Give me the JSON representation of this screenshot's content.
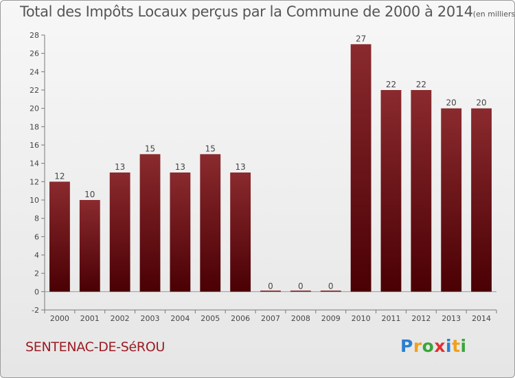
{
  "brand": {
    "letters": [
      {
        "char": "P",
        "color": "#2a7fd0"
      },
      {
        "char": "r",
        "color": "#f0a020"
      },
      {
        "char": "o",
        "color": "#3aa63a"
      },
      {
        "char": "x",
        "color": "#e03030"
      },
      {
        "char": "i",
        "color": "#2a7fd0"
      },
      {
        "char": "t",
        "color": "#f0a020"
      },
      {
        "char": "i",
        "color": "#3aa63a"
      }
    ]
  },
  "commune": "SENTENAC-DE-SéROU",
  "chart_data": {
    "type": "bar",
    "title": "Total des Impôts Locaux perçus par la Commune de 2000 à 2014",
    "subtitle": "(en milliers d'€)",
    "categories": [
      "2000",
      "2001",
      "2002",
      "2003",
      "2004",
      "2005",
      "2006",
      "2007",
      "2008",
      "2009",
      "2010",
      "2011",
      "2012",
      "2013",
      "2014"
    ],
    "values": [
      12,
      10,
      13,
      15,
      13,
      15,
      13,
      0,
      0,
      0,
      27,
      22,
      22,
      20,
      20
    ],
    "ylim": [
      -2,
      28
    ],
    "yticks": [
      -2,
      0,
      2,
      4,
      6,
      8,
      10,
      12,
      14,
      16,
      18,
      20,
      22,
      24,
      26,
      28
    ],
    "xlabel": "",
    "ylabel": "",
    "grid": false,
    "bar_color": "#7a1a1e"
  }
}
